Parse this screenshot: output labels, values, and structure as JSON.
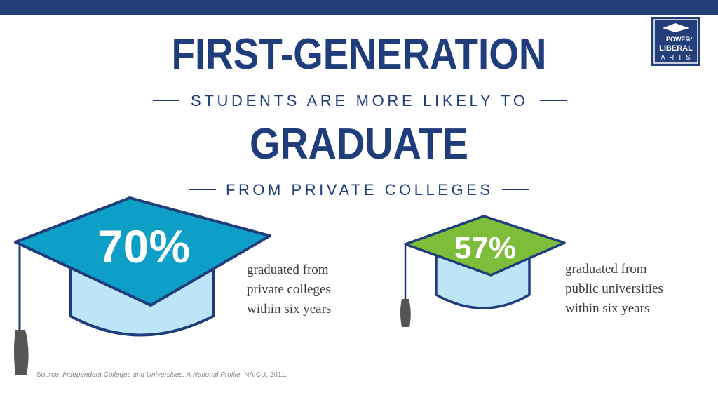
{
  "header": {
    "top_line": "FIRST-GENERATION",
    "second_line": "STUDENTS ARE MORE LIKELY TO",
    "third_line": "GRADUATE",
    "fourth_line": "FROM PRIVATE COLLEGES"
  },
  "logo": {
    "lines": [
      "POWER",
      "of",
      "LIBERAL",
      "A·R·T·S"
    ]
  },
  "stats": [
    {
      "value_label": "70%",
      "caption": [
        "graduated from",
        "private colleges",
        "within six years"
      ]
    },
    {
      "value_label": "57%",
      "caption": [
        "graduated from",
        "public universities",
        "within six years"
      ]
    }
  ],
  "source": {
    "prefix": "Source:",
    "title": "Independent Colleges and Universities: A National Profile.",
    "suffix": "NAICU, 2011."
  }
}
